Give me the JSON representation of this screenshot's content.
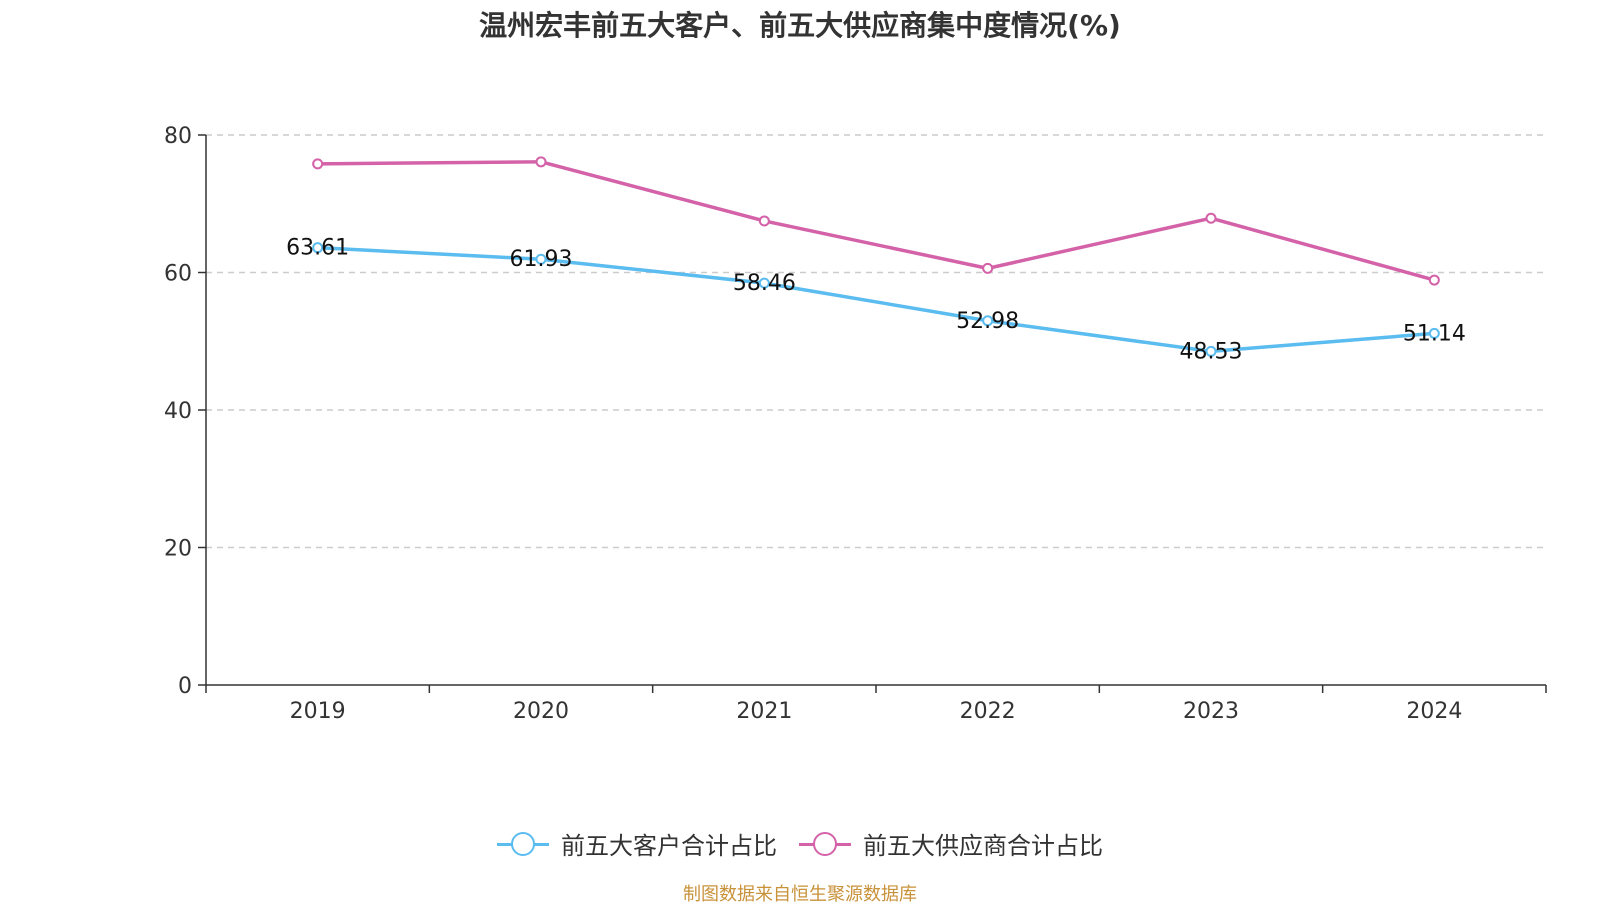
{
  "chart_data": {
    "type": "line",
    "title": "温州宏丰前五大客户、前五大供应商集中度情况(%)",
    "xlabel": "",
    "ylabel": "",
    "categories": [
      "2019",
      "2020",
      "2021",
      "2022",
      "2023",
      "2024"
    ],
    "ylim": [
      0,
      80
    ],
    "yticks": [
      0,
      20,
      40,
      60,
      80
    ],
    "grid": true,
    "legend_position": "bottom-center",
    "series": [
      {
        "name": "前五大客户合计占比",
        "color": "#5bbcf0",
        "values": [
          63.61,
          61.93,
          58.46,
          52.98,
          48.53,
          51.14
        ],
        "show_labels": true
      },
      {
        "name": "前五大供应商合计占比",
        "color": "#d462a8",
        "values": [
          75.8,
          76.1,
          67.5,
          60.6,
          67.9,
          58.9
        ],
        "show_labels": false
      }
    ]
  },
  "source_text": "制图数据来自恒生聚源数据库"
}
